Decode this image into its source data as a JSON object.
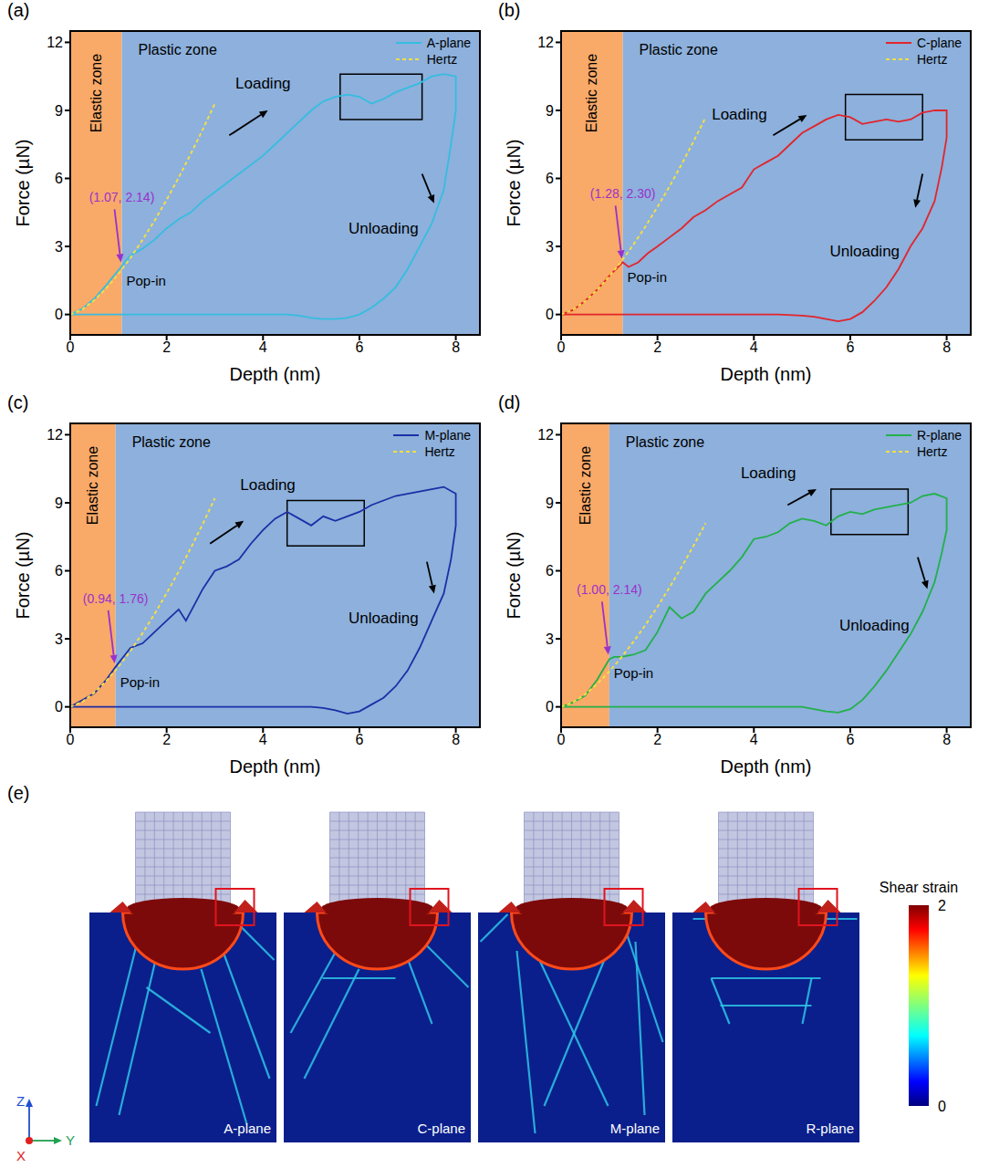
{
  "chart_data": [
    {
      "type": "line",
      "panel": "(a)",
      "xlabel": "Depth (nm)",
      "ylabel": "Force (µN)",
      "xlim": [
        0,
        8.5
      ],
      "ylim": [
        -0.9,
        12.5
      ],
      "xticks": [
        0,
        2,
        4,
        6,
        8
      ],
      "yticks": [
        0,
        3,
        6,
        9,
        12
      ],
      "grid": false,
      "legend": "upper right",
      "series": [
        {
          "name": "A-plane",
          "color": "#35bde0",
          "line_style": "solid",
          "x": [
            0,
            0.25,
            0.5,
            0.75,
            1,
            1.07,
            1.25,
            1.5,
            1.75,
            2,
            2.25,
            2.5,
            2.75,
            3,
            3.25,
            3.5,
            3.75,
            4,
            4.25,
            4.5,
            4.75,
            5,
            5.25,
            5.5,
            5.75,
            6,
            6.25,
            6.5,
            6.75,
            7,
            7.25,
            7.5,
            7.75,
            8,
            8,
            7.9,
            7.75,
            7.5,
            7.25,
            7,
            6.75,
            6.5,
            6.25,
            6,
            5.75,
            5.5,
            5.25,
            5,
            4.75,
            4.5,
            4,
            3,
            2,
            1,
            0
          ],
          "values": [
            0,
            0.25,
            0.7,
            1.3,
            1.95,
            2.14,
            2.6,
            2.9,
            3.3,
            3.8,
            4.2,
            4.5,
            5.0,
            5.4,
            5.8,
            6.2,
            6.6,
            7.0,
            7.5,
            8.0,
            8.5,
            9.0,
            9.4,
            9.6,
            9.7,
            9.6,
            9.3,
            9.5,
            9.8,
            10.0,
            10.2,
            10.5,
            10.6,
            10.5,
            9.0,
            7.5,
            5.5,
            4.0,
            3.0,
            2.0,
            1.2,
            0.7,
            0.3,
            0,
            -0.15,
            -0.2,
            -0.2,
            -0.15,
            -0.05,
            0,
            0,
            0,
            0,
            0,
            0
          ]
        },
        {
          "name": "Hertz",
          "color": "#f2df45",
          "line_style": "dashed",
          "x": [
            0,
            0.25,
            0.5,
            0.75,
            1,
            1.25,
            1.5,
            1.75,
            2,
            2.25,
            2.5,
            2.75,
            3
          ],
          "values": [
            0,
            0.22,
            0.63,
            1.16,
            1.79,
            2.5,
            3.29,
            4.14,
            5.06,
            6.04,
            7.08,
            8.16,
            9.3
          ]
        }
      ],
      "pop_in": {
        "x": 1.07,
        "y": 2.14,
        "label": "(1.07, 2.14)",
        "text": "Pop-in",
        "color": "#9932cc"
      },
      "zones": [
        {
          "name": "Elastic zone",
          "from": 0,
          "to": 1.07,
          "color": "#f9a968"
        },
        {
          "name": "Plastic zone",
          "from": 1.07,
          "to": 8.5,
          "color": "#8db0dc"
        }
      ],
      "annotations": [
        {
          "text": "Loading",
          "x": 4.0,
          "y": 10.2,
          "arrow": [
            [
              3.3,
              7.9
            ],
            [
              4.1,
              9.0
            ]
          ]
        },
        {
          "text": "Unloading",
          "x": 6.5,
          "y": 3.8,
          "arrow": [
            [
              7.3,
              6.2
            ],
            [
              7.55,
              4.9
            ]
          ]
        }
      ],
      "box": {
        "x": [
          5.6,
          7.3
        ],
        "y": [
          8.6,
          10.6
        ]
      }
    },
    {
      "type": "line",
      "panel": "(b)",
      "xlabel": "Depth (nm)",
      "ylabel": "Force (µN)",
      "xlim": [
        0,
        8.5
      ],
      "ylim": [
        -0.9,
        12.5
      ],
      "xticks": [
        0,
        2,
        4,
        6,
        8
      ],
      "yticks": [
        0,
        3,
        6,
        9,
        12
      ],
      "grid": false,
      "legend": "upper right",
      "series": [
        {
          "name": "C-plane",
          "color": "#e3242b",
          "line_style": "solid",
          "x": [
            0,
            0.25,
            0.5,
            0.75,
            1,
            1.28,
            1.4,
            1.6,
            1.8,
            2,
            2.25,
            2.5,
            2.75,
            3,
            3.25,
            3.5,
            3.75,
            4,
            4.25,
            4.5,
            4.75,
            5,
            5.25,
            5.5,
            5.75,
            6,
            6.25,
            6.5,
            6.75,
            7,
            7.25,
            7.5,
            7.75,
            8,
            8,
            7.9,
            7.75,
            7.5,
            7.25,
            7,
            6.75,
            6.5,
            6.25,
            6,
            5.75,
            5.5,
            5.25,
            5,
            4.5,
            3,
            0
          ],
          "values": [
            0,
            0.2,
            0.6,
            1.1,
            1.7,
            2.3,
            2.1,
            2.3,
            2.7,
            3.0,
            3.4,
            3.8,
            4.3,
            4.6,
            5.0,
            5.3,
            5.6,
            6.4,
            6.7,
            7.0,
            7.5,
            8.0,
            8.3,
            8.6,
            8.8,
            8.7,
            8.4,
            8.5,
            8.6,
            8.5,
            8.6,
            8.9,
            9.0,
            9.0,
            7.8,
            6.5,
            5.0,
            3.8,
            3.0,
            2.0,
            1.2,
            0.6,
            0.1,
            -0.2,
            -0.3,
            -0.2,
            -0.1,
            -0.05,
            0,
            0,
            0
          ]
        },
        {
          "name": "Hertz",
          "color": "#f2df45",
          "line_style": "dashed",
          "x": [
            0,
            0.25,
            0.5,
            0.75,
            1,
            1.25,
            1.5,
            1.75,
            2,
            2.25,
            2.5,
            2.75,
            3
          ],
          "values": [
            0,
            0.21,
            0.59,
            1.09,
            1.68,
            2.34,
            3.08,
            3.88,
            4.74,
            5.65,
            6.62,
            7.64,
            8.7
          ]
        }
      ],
      "pop_in": {
        "x": 1.28,
        "y": 2.3,
        "label": "(1.28, 2.30)",
        "text": "Pop-in",
        "color": "#9932cc"
      },
      "zones": [
        {
          "name": "Elastic zone",
          "from": 0,
          "to": 1.28,
          "color": "#f9a968"
        },
        {
          "name": "Plastic zone",
          "from": 1.28,
          "to": 8.5,
          "color": "#8db0dc"
        }
      ],
      "annotations": [
        {
          "text": "Loading",
          "x": 3.7,
          "y": 8.8,
          "arrow": [
            [
              4.4,
              7.9
            ],
            [
              5.1,
              8.8
            ]
          ]
        },
        {
          "text": "Unloading",
          "x": 6.3,
          "y": 2.8,
          "arrow": [
            [
              7.5,
              6.2
            ],
            [
              7.35,
              4.7
            ]
          ]
        }
      ],
      "box": {
        "x": [
          5.9,
          7.5
        ],
        "y": [
          7.7,
          9.7
        ]
      }
    },
    {
      "type": "line",
      "panel": "(c)",
      "xlabel": "Depth (nm)",
      "ylabel": "Force (µN)",
      "xlim": [
        0,
        8.5
      ],
      "ylim": [
        -0.9,
        12.5
      ],
      "xticks": [
        0,
        2,
        4,
        6,
        8
      ],
      "yticks": [
        0,
        3,
        6,
        9,
        12
      ],
      "grid": false,
      "legend": "upper right",
      "series": [
        {
          "name": "M-plane",
          "color": "#1b2fa6",
          "line_style": "solid",
          "x": [
            0,
            0.25,
            0.5,
            0.75,
            0.94,
            1.1,
            1.25,
            1.5,
            1.75,
            2,
            2.25,
            2.4,
            2.6,
            2.75,
            3,
            3.25,
            3.5,
            3.75,
            4,
            4.25,
            4.5,
            4.75,
            5,
            5.25,
            5.5,
            5.75,
            6,
            6.25,
            6.5,
            6.75,
            7,
            7.25,
            7.5,
            7.75,
            8,
            8,
            7.9,
            7.75,
            7.5,
            7.25,
            7,
            6.75,
            6.5,
            6.25,
            6,
            5.75,
            5.5,
            5.25,
            5,
            3,
            0
          ],
          "values": [
            0,
            0.3,
            0.6,
            1.2,
            1.76,
            2.2,
            2.6,
            2.8,
            3.3,
            3.8,
            4.3,
            3.8,
            4.6,
            5.2,
            6.0,
            6.2,
            6.5,
            7.2,
            7.8,
            8.3,
            8.6,
            8.3,
            8.0,
            8.4,
            8.2,
            8.4,
            8.6,
            8.9,
            9.1,
            9.3,
            9.4,
            9.5,
            9.6,
            9.7,
            9.4,
            8.0,
            6.5,
            5.0,
            3.8,
            2.6,
            1.6,
            0.9,
            0.4,
            0.1,
            -0.2,
            -0.3,
            -0.15,
            -0.05,
            0,
            0,
            0
          ]
        },
        {
          "name": "Hertz",
          "color": "#f2df45",
          "line_style": "dashed",
          "x": [
            0,
            0.25,
            0.5,
            0.75,
            1,
            1.25,
            1.5,
            1.75,
            2,
            2.25,
            2.5,
            2.75,
            3
          ],
          "values": [
            0,
            0.22,
            0.63,
            1.15,
            1.77,
            2.47,
            3.25,
            4.1,
            5.01,
            5.97,
            7.0,
            8.07,
            9.2
          ]
        }
      ],
      "pop_in": {
        "x": 0.94,
        "y": 1.76,
        "label": "(0.94, 1.76)",
        "text": "Pop-in",
        "color": "#9932cc"
      },
      "zones": [
        {
          "name": "Elastic zone",
          "from": 0,
          "to": 0.94,
          "color": "#f9a968"
        },
        {
          "name": "Plastic zone",
          "from": 0.94,
          "to": 8.5,
          "color": "#8db0dc"
        }
      ],
      "annotations": [
        {
          "text": "Loading",
          "x": 4.1,
          "y": 9.8,
          "arrow": [
            [
              2.9,
              7.2
            ],
            [
              3.6,
              8.2
            ]
          ]
        },
        {
          "text": "Unloading",
          "x": 6.5,
          "y": 3.9,
          "arrow": [
            [
              7.4,
              6.4
            ],
            [
              7.55,
              5.0
            ]
          ]
        }
      ],
      "box": {
        "x": [
          4.5,
          6.1
        ],
        "y": [
          7.1,
          9.1
        ]
      }
    },
    {
      "type": "line",
      "panel": "(d)",
      "xlabel": "Depth (nm)",
      "ylabel": "Force (µN)",
      "xlim": [
        0,
        8.5
      ],
      "ylim": [
        -0.9,
        12.5
      ],
      "xticks": [
        0,
        2,
        4,
        6,
        8
      ],
      "yticks": [
        0,
        3,
        6,
        9,
        12
      ],
      "grid": false,
      "legend": "upper right",
      "series": [
        {
          "name": "R-plane",
          "color": "#22b04a",
          "line_style": "solid",
          "x": [
            0,
            0.25,
            0.5,
            0.75,
            1,
            1.1,
            1.25,
            1.5,
            1.75,
            2,
            2.25,
            2.5,
            2.75,
            3,
            3.25,
            3.5,
            3.75,
            4,
            4.25,
            4.5,
            4.75,
            5,
            5.25,
            5.5,
            5.75,
            6,
            6.25,
            6.5,
            6.75,
            7,
            7.25,
            7.5,
            7.75,
            8,
            8,
            7.9,
            7.75,
            7.5,
            7.25,
            7,
            6.75,
            6.5,
            6.25,
            6,
            5.75,
            5.5,
            5.25,
            5,
            3,
            0
          ],
          "values": [
            0,
            0.2,
            0.5,
            1.2,
            2.1,
            2.2,
            2.2,
            2.3,
            2.5,
            3.3,
            4.4,
            3.9,
            4.2,
            5.0,
            5.5,
            6.0,
            6.6,
            7.4,
            7.5,
            7.7,
            8.1,
            8.3,
            8.2,
            8.0,
            8.4,
            8.6,
            8.5,
            8.7,
            8.8,
            8.9,
            9.0,
            9.3,
            9.4,
            9.2,
            7.8,
            6.8,
            5.5,
            4.2,
            3.2,
            2.4,
            1.6,
            0.9,
            0.3,
            -0.1,
            -0.25,
            -0.2,
            -0.1,
            0,
            0,
            0
          ]
        },
        {
          "name": "Hertz",
          "color": "#f2df45",
          "line_style": "dashed",
          "x": [
            0,
            0.25,
            0.5,
            0.75,
            1,
            1.25,
            1.5,
            1.75,
            2,
            2.25,
            2.5,
            2.75,
            3
          ],
          "values": [
            0,
            0.2,
            0.55,
            1.01,
            1.56,
            2.18,
            2.87,
            3.61,
            4.41,
            5.27,
            6.17,
            7.11,
            8.1
          ]
        }
      ],
      "pop_in": {
        "x": 1.0,
        "y": 2.14,
        "label": "(1.00, 2.14)",
        "text": "Pop-in",
        "color": "#9932cc"
      },
      "zones": [
        {
          "name": "Elastic zone",
          "from": 0,
          "to": 1.0,
          "color": "#f9a968"
        },
        {
          "name": "Plastic zone",
          "from": 1.0,
          "to": 8.5,
          "color": "#8db0dc"
        }
      ],
      "annotations": [
        {
          "text": "Loading",
          "x": 4.3,
          "y": 10.3,
          "arrow": [
            [
              4.7,
              8.9
            ],
            [
              5.3,
              9.6
            ]
          ]
        },
        {
          "text": "Unloading",
          "x": 6.5,
          "y": 3.6,
          "arrow": [
            [
              7.4,
              6.6
            ],
            [
              7.6,
              5.2
            ]
          ]
        }
      ],
      "box": {
        "x": [
          5.6,
          7.2
        ],
        "y": [
          7.6,
          9.6
        ]
      }
    }
  ],
  "figure_e": {
    "panel": "(e)",
    "subpanels": [
      "A-plane",
      "C-plane",
      "M-plane",
      "R-plane"
    ],
    "colorbar": {
      "title": "Shear strain",
      "range": [
        0,
        2
      ],
      "ticks": [
        0,
        2
      ]
    },
    "axes": [
      "Z",
      "Y",
      "X"
    ]
  }
}
